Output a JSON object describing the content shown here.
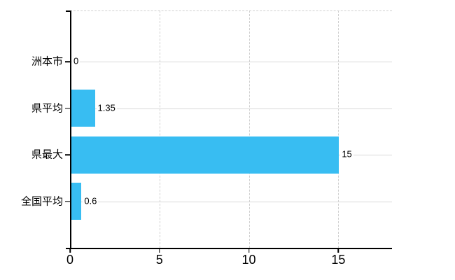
{
  "chart_data": {
    "type": "bar",
    "orientation": "horizontal",
    "title": "",
    "categories": [
      "洲本市",
      "県平均",
      "県最大",
      "全国平均"
    ],
    "values": [
      0,
      1.35,
      15,
      0.6
    ],
    "value_labels": [
      "0",
      "1.35",
      "15",
      "0.6"
    ],
    "x_ticks": [
      0,
      5,
      10,
      15
    ],
    "x_tick_labels": [
      "0",
      "5",
      "10",
      "15"
    ],
    "xlim": [
      0,
      18
    ],
    "grid": true,
    "legend": false,
    "colors": {
      "bar": "#38bdf2",
      "gridline": "#d8d8d8",
      "dashed_gridline": "#cfcfcf",
      "axis": "#000000",
      "text": "#000000",
      "background": "#ffffff"
    }
  }
}
